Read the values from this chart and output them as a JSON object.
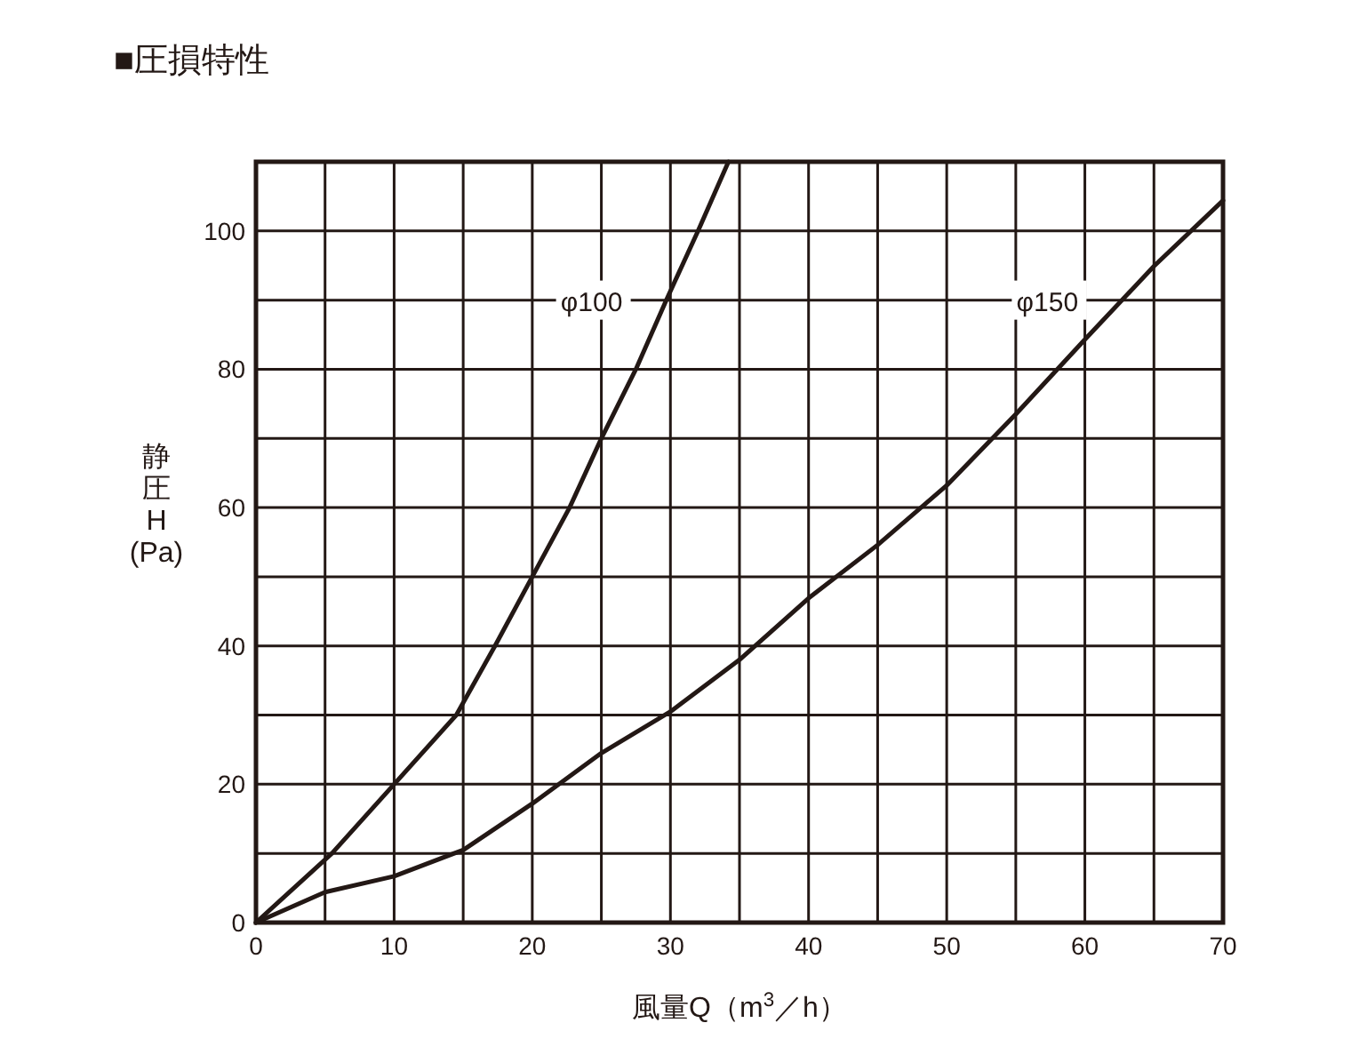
{
  "chart_data": {
    "type": "line",
    "title": "■圧損特性",
    "xlabel": "風量Q（m$^{3}$／h）",
    "ylabel": "静圧 H (Pa)",
    "xlim": [
      0,
      70
    ],
    "ylim": [
      0,
      110
    ],
    "xticks": [
      0,
      {
        "value": 5,
        "label": null
      },
      10,
      {
        "value": 15,
        "label": null
      },
      20,
      {
        "value": 25,
        "label": null
      },
      30,
      {
        "value": 35,
        "label": null
      },
      40,
      {
        "value": 45,
        "label": null
      },
      50,
      {
        "value": 55,
        "label": null
      },
      60,
      {
        "value": 65,
        "label": null
      },
      70
    ],
    "yticks": [
      0,
      {
        "value": 10,
        "label": null
      },
      20,
      {
        "value": 30,
        "label": null
      },
      40,
      {
        "value": 50,
        "label": null
      },
      60,
      {
        "value": 70,
        "label": null
      },
      80,
      {
        "value": 90,
        "label": null
      },
      100,
      {
        "value": 110,
        "label": null
      }
    ],
    "grid": true,
    "marker": "none",
    "line_style": "solid",
    "series": [
      {
        "name": "φ100",
        "color": "#231815",
        "x": [
          0,
          5.5,
          10,
          14.5,
          17.3,
          20,
          22.7,
          25,
          27.5,
          29.7,
          32,
          34.2
        ],
        "values": [
          0,
          10,
          20,
          30,
          40,
          50,
          60,
          70,
          80,
          90,
          100,
          110
        ]
      },
      {
        "name": "φ150",
        "color": "#231815",
        "x": [
          0,
          5,
          10,
          15,
          20,
          25,
          30,
          35,
          40,
          45,
          50,
          55,
          60,
          65,
          70
        ],
        "values": [
          0,
          4.4,
          6.7,
          10.5,
          17.2,
          24.5,
          30.5,
          38,
          46.9,
          54.6,
          63.2,
          73.5,
          84.3,
          94.9,
          104.4
        ]
      }
    ]
  }
}
